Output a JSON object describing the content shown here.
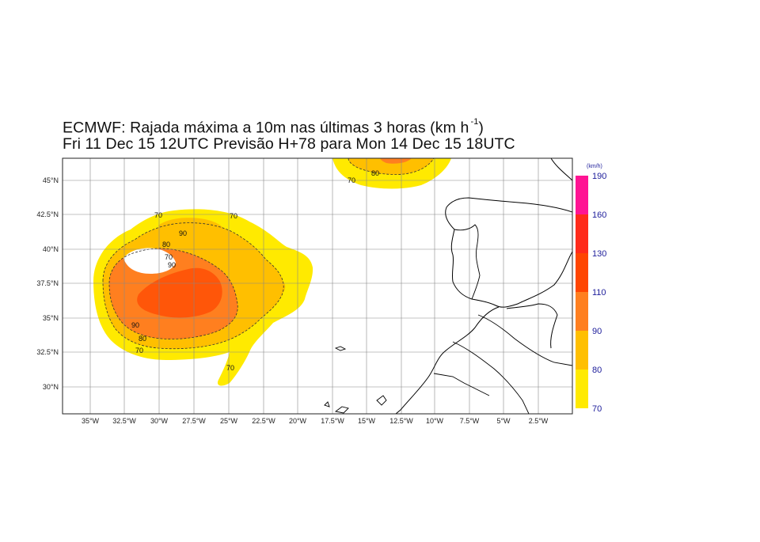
{
  "title": {
    "line1_main": "ECMWF: Rajada máxima a 10m nas últimas 3 horas (km h",
    "line1_sup": "-1",
    "line1_end": ")",
    "line2": "Fri 11 Dec 15 12UTC Previsão H+78 para Mon 14 Dec 15 18UTC"
  },
  "map": {
    "lat_ticks": [
      "45°N",
      "42.5°N",
      "40°N",
      "37.5°N",
      "35°N",
      "32.5°N",
      "30°N"
    ],
    "lon_ticks": [
      "35°W",
      "32.5°W",
      "30°W",
      "27.5°W",
      "25°W",
      "22.5°W",
      "20°W",
      "17.5°W",
      "15°W",
      "12.5°W",
      "10°W",
      "7.5°W",
      "5°W",
      "2.5°W"
    ],
    "contour_labels": [
      "70",
      "70",
      "90",
      "80",
      "70",
      "90",
      "90",
      "80",
      "70",
      "70",
      "80",
      "70"
    ]
  },
  "legend": {
    "unit": "(km/h)",
    "levels": [
      "190",
      "160",
      "130",
      "110",
      "90",
      "80",
      "70"
    ],
    "colors": [
      "#ff1493",
      "#ff2a1a",
      "#ff4500",
      "#ff7f1f",
      "#ffbf00",
      "#ffea00"
    ]
  }
}
